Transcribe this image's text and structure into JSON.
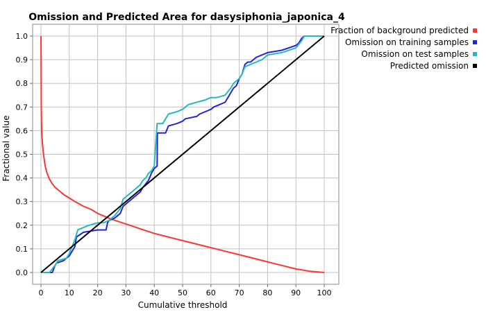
{
  "chart_data": {
    "type": "line",
    "title": "Omission and Predicted Area for dasysiphonia_japonica_4",
    "xlabel": "Cumulative threshold",
    "ylabel": "Fractional value",
    "xlim": [
      0,
      100
    ],
    "ylim": [
      0,
      1
    ],
    "x_ticks": [
      "0",
      "10",
      "20",
      "30",
      "40",
      "50",
      "60",
      "70",
      "80",
      "90",
      "100"
    ],
    "y_ticks": [
      "0.0",
      "0.1",
      "0.2",
      "0.3",
      "0.4",
      "0.5",
      "0.6",
      "0.7",
      "0.8",
      "0.9",
      "1.0"
    ],
    "grid": true,
    "legend_position": "right-top",
    "series": [
      {
        "name": "Fraction of background predicted",
        "color": "#ff3333",
        "x": [
          0,
          0.05,
          0.1,
          0.2,
          0.3,
          0.5,
          0.7,
          1,
          1.5,
          2,
          3,
          4,
          5,
          6,
          8,
          10,
          12,
          15,
          18,
          20,
          25,
          30,
          35,
          40,
          45,
          50,
          55,
          60,
          65,
          70,
          75,
          80,
          85,
          90,
          95,
          100
        ],
        "y": [
          1.0,
          0.9,
          0.72,
          0.63,
          0.59,
          0.55,
          0.52,
          0.49,
          0.45,
          0.425,
          0.395,
          0.375,
          0.36,
          0.35,
          0.33,
          0.315,
          0.3,
          0.28,
          0.265,
          0.25,
          0.225,
          0.205,
          0.185,
          0.165,
          0.15,
          0.135,
          0.12,
          0.105,
          0.09,
          0.075,
          0.06,
          0.045,
          0.03,
          0.015,
          0.005,
          0.0
        ]
      },
      {
        "name": "Omission on training samples",
        "color": "#2222dd",
        "x": [
          0,
          4,
          5,
          5.5,
          8,
          10,
          12,
          12.5,
          15,
          20,
          22,
          23,
          23.5,
          24,
          26,
          28,
          29,
          30,
          33,
          34,
          35,
          36,
          38,
          39,
          40,
          41,
          41.1,
          44,
          45,
          48,
          50,
          51,
          55,
          56,
          60,
          61,
          63,
          65,
          66,
          67,
          68,
          69,
          70,
          71,
          72,
          73,
          74,
          75,
          76,
          78,
          80,
          85,
          90,
          91,
          92,
          93,
          95,
          100
        ],
        "y": [
          0.0,
          0.0,
          0.03,
          0.04,
          0.05,
          0.07,
          0.11,
          0.15,
          0.17,
          0.18,
          0.18,
          0.18,
          0.21,
          0.22,
          0.23,
          0.25,
          0.28,
          0.29,
          0.32,
          0.33,
          0.34,
          0.36,
          0.39,
          0.42,
          0.44,
          0.45,
          0.59,
          0.59,
          0.62,
          0.63,
          0.64,
          0.65,
          0.66,
          0.67,
          0.69,
          0.7,
          0.71,
          0.72,
          0.74,
          0.76,
          0.78,
          0.79,
          0.82,
          0.84,
          0.88,
          0.89,
          0.89,
          0.9,
          0.91,
          0.92,
          0.93,
          0.94,
          0.96,
          0.97,
          0.99,
          1.0,
          1.0,
          1.0
        ]
      },
      {
        "name": "Omission on test samples",
        "color": "#22bbbb",
        "x": [
          0,
          3,
          5,
          6,
          9,
          10,
          12,
          13,
          15,
          17,
          20,
          22,
          24,
          26,
          28,
          29,
          30,
          32,
          33,
          34,
          35,
          36,
          37,
          38,
          39,
          40,
          41,
          43,
          44,
          45,
          48,
          50,
          52,
          55,
          58,
          60,
          62,
          65,
          67,
          68,
          69,
          70,
          71,
          72,
          74,
          76,
          78,
          80,
          85,
          90,
          92,
          93,
          95,
          100
        ],
        "y": [
          0.0,
          0.0,
          0.03,
          0.05,
          0.06,
          0.08,
          0.14,
          0.18,
          0.19,
          0.2,
          0.21,
          0.21,
          0.22,
          0.24,
          0.27,
          0.31,
          0.32,
          0.34,
          0.35,
          0.36,
          0.37,
          0.39,
          0.4,
          0.42,
          0.43,
          0.45,
          0.63,
          0.63,
          0.65,
          0.67,
          0.68,
          0.69,
          0.71,
          0.72,
          0.73,
          0.74,
          0.74,
          0.75,
          0.78,
          0.8,
          0.81,
          0.82,
          0.84,
          0.87,
          0.88,
          0.89,
          0.9,
          0.92,
          0.93,
          0.95,
          0.98,
          1.0,
          1.0,
          1.0
        ]
      },
      {
        "name": "Predicted omission",
        "color": "#000000",
        "x": [
          0,
          100
        ],
        "y": [
          0,
          1
        ]
      }
    ]
  }
}
